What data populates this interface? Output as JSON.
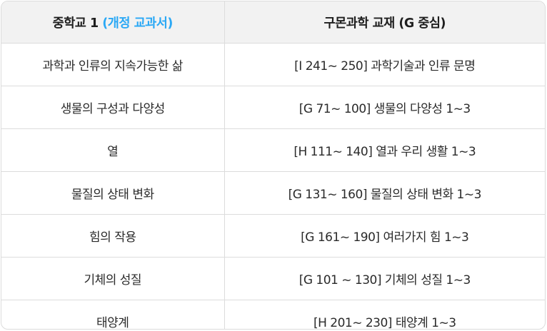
{
  "header": {
    "col1_prefix": "중학교 1 ",
    "col1_accent": "(개정 교과서)",
    "col2": "구몬과학 교재 (G 중심)",
    "accent_color": "#2aa8f5"
  },
  "rows": [
    {
      "unit": "과학과 인류의 지속가능한 삶",
      "material": "[I 241~ 250] 과학기술과 인류 문명"
    },
    {
      "unit": "생물의 구성과 다양성",
      "material": "[G 71~ 100] 생물의 다양성 1~3"
    },
    {
      "unit": "열",
      "material": "[H 111~ 140] 열과 우리 생활 1~3"
    },
    {
      "unit": "물질의 상태 변화",
      "material": "[G 131~ 160] 물질의 상태 변화 1~3"
    },
    {
      "unit": "힘의 작용",
      "material": "[G 161~ 190] 여러가지 힘 1~3"
    },
    {
      "unit": "기체의 성질",
      "material": "[G 101 ~ 130] 기체의 성질 1~3"
    },
    {
      "unit": "태양계",
      "material": "[H 201~ 230] 태양계 1~3"
    }
  ]
}
